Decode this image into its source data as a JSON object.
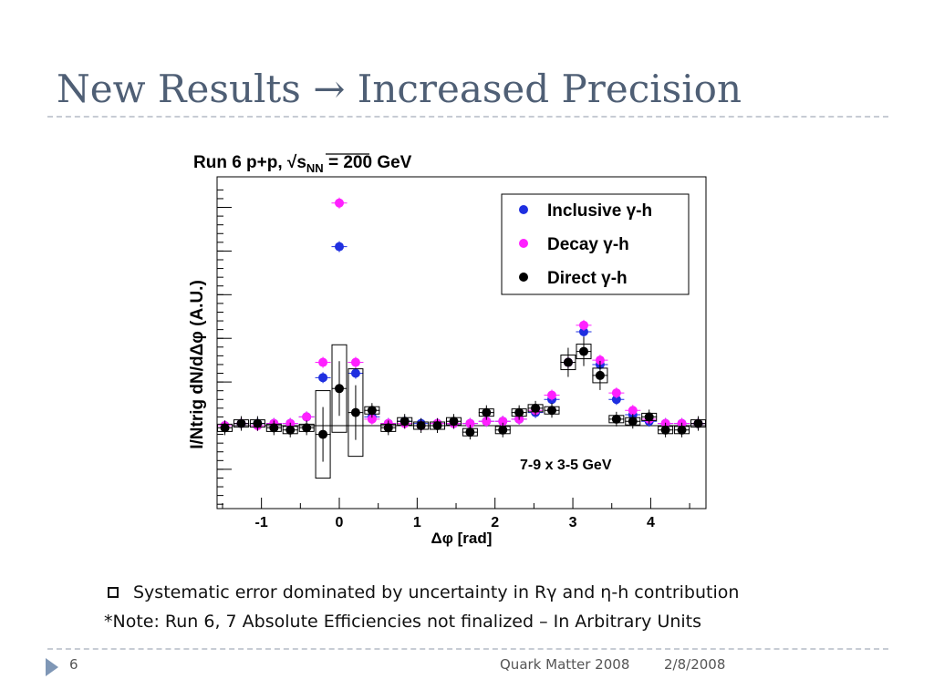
{
  "slide": {
    "title": "New Results → Increased Precision",
    "bullets": [
      "Systematic error dominated by uncertainty in Rγ and η-h contribution",
      "*Note:  Run 6, 7 Absolute Efficiencies not finalized – In Arbitrary Units"
    ],
    "footer": {
      "page_number": "6",
      "conference": "Quark Matter 2008",
      "date": "2/8/2008"
    }
  },
  "chart_data": {
    "type": "scatter",
    "title": "Run 6 p+p,  √s",
    "title_subscript": "NN",
    "title_suffix": " = 200 GeV",
    "xlabel": "Δφ [rad]",
    "ylabel": "I/Ntrig dN/dΔφ (A.U.)",
    "annotation": "7-9 x 3-5 GeV",
    "xlim": [
      -1.57,
      4.71
    ],
    "ylim": [
      -1.9,
      5.7
    ],
    "xticks": [
      -1,
      0,
      1,
      2,
      3,
      4
    ],
    "yticks": [
      -1,
      0,
      1,
      2,
      3,
      4,
      5
    ],
    "ytick_labels_visible": false,
    "legend_position": "top-right",
    "reference_line_y": 0,
    "series": [
      {
        "name": "Inclusive γ-h",
        "color": "#1f2fe0",
        "x": [
          -1.47,
          -1.26,
          -1.05,
          -0.84,
          -0.63,
          -0.42,
          -0.21,
          0.0,
          0.21,
          0.42,
          0.63,
          0.84,
          1.05,
          1.26,
          1.47,
          1.68,
          1.89,
          2.1,
          2.31,
          2.52,
          2.73,
          2.94,
          3.14,
          3.35,
          3.56,
          3.77,
          3.98,
          4.19,
          4.4,
          4.61
        ],
        "y": [
          0.0,
          0.05,
          0.05,
          0.05,
          0.05,
          0.2,
          1.1,
          4.1,
          1.2,
          0.2,
          0.05,
          0.1,
          0.05,
          0.05,
          0.05,
          0.05,
          0.1,
          0.1,
          0.15,
          0.3,
          0.6,
          1.45,
          2.15,
          1.4,
          0.6,
          0.25,
          0.1,
          0.05,
          0.05,
          0.05
        ]
      },
      {
        "name": "Decay γ-h",
        "color": "#ff20ff",
        "x": [
          -1.47,
          -1.26,
          -1.05,
          -0.84,
          -0.63,
          -0.42,
          -0.21,
          0.0,
          0.21,
          0.42,
          0.63,
          0.84,
          1.05,
          1.26,
          1.47,
          1.68,
          1.89,
          2.1,
          2.31,
          2.52,
          2.73,
          2.94,
          3.14,
          3.35,
          3.56,
          3.77,
          3.98,
          4.19,
          4.4,
          4.61
        ],
        "y": [
          0.0,
          0.05,
          0.0,
          0.05,
          0.05,
          0.2,
          1.45,
          5.1,
          1.45,
          0.15,
          0.05,
          0.05,
          0.0,
          0.05,
          0.05,
          0.05,
          0.1,
          0.1,
          0.15,
          0.35,
          0.7,
          1.45,
          2.3,
          1.5,
          0.75,
          0.35,
          0.15,
          0.05,
          0.05,
          0.05
        ]
      },
      {
        "name": "Direct γ-h",
        "color": "#000000",
        "x": [
          -1.47,
          -1.26,
          -1.05,
          -0.84,
          -0.63,
          -0.42,
          -0.21,
          0.0,
          0.21,
          0.42,
          0.63,
          0.84,
          1.05,
          1.26,
          1.47,
          1.68,
          1.89,
          2.1,
          2.31,
          2.52,
          2.73,
          2.94,
          3.14,
          3.35,
          3.56,
          3.77,
          3.98,
          4.19,
          4.4,
          4.61
        ],
        "y": [
          -0.05,
          0.05,
          0.05,
          -0.05,
          -0.1,
          -0.05,
          -0.2,
          0.85,
          0.3,
          0.35,
          -0.05,
          0.1,
          0.0,
          0.0,
          0.1,
          -0.15,
          0.3,
          -0.1,
          0.3,
          0.4,
          0.35,
          1.45,
          1.7,
          1.15,
          0.15,
          0.1,
          0.2,
          -0.1,
          -0.1,
          0.05
        ]
      }
    ]
  }
}
